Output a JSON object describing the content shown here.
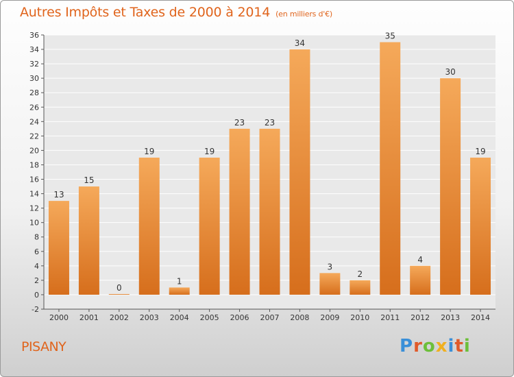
{
  "title": "Autres Impôts et Taxes de 2000 à 2014",
  "title_unit": "(en milliers d'€)",
  "commune": "PISANY",
  "logo_text": "Proxiti",
  "colors": {
    "title": "#e0641c",
    "bar_top": "#f5a95a",
    "bar_bottom": "#d66e1c",
    "grid": "#ffffff",
    "logo": [
      "#3a8fd8",
      "#e05a2a",
      "#6cbf3a",
      "#f0b020",
      "#3a8fd8",
      "#e05a2a",
      "#6cbf3a"
    ]
  },
  "chart_data": {
    "type": "bar",
    "title": "Autres Impôts et Taxes de 2000 à 2014",
    "subtitle": "(en milliers d'€)",
    "categories": [
      "2000",
      "2001",
      "2002",
      "2003",
      "2004",
      "2005",
      "2006",
      "2007",
      "2008",
      "2009",
      "2010",
      "2011",
      "2012",
      "2013",
      "2014"
    ],
    "values": [
      13,
      15,
      0,
      19,
      1,
      19,
      23,
      23,
      34,
      3,
      2,
      35,
      4,
      30,
      19
    ],
    "ylim": [
      -2,
      36
    ],
    "yticks": [
      -2,
      0,
      2,
      4,
      6,
      8,
      10,
      12,
      14,
      16,
      18,
      20,
      22,
      24,
      26,
      28,
      30,
      32,
      34,
      36
    ],
    "grid": true,
    "xlabel": "",
    "ylabel": ""
  }
}
